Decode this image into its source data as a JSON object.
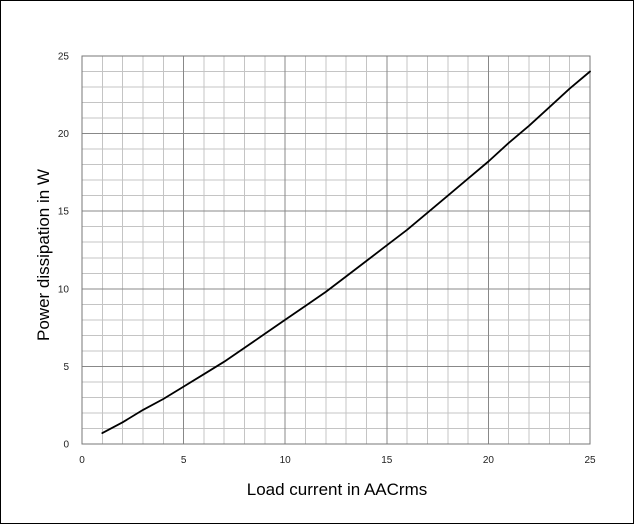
{
  "chart_data": {
    "type": "line",
    "title": "",
    "xlabel": "Load current in AACrms",
    "ylabel": "Power dissipation in W",
    "xlim": [
      0,
      25
    ],
    "ylim": [
      0,
      25
    ],
    "x_ticks": [
      0,
      5,
      10,
      15,
      20,
      25
    ],
    "y_ticks": [
      0,
      5,
      10,
      15,
      20,
      25
    ],
    "x_tick_labels": [
      "0",
      "5",
      "10",
      "15",
      "20",
      "25"
    ],
    "y_tick_labels": [
      "0",
      "5",
      "10",
      "15",
      "20",
      "25"
    ],
    "grid": true,
    "grid_minor_step": 1,
    "legend": "none",
    "colors": {
      "line": "#000000",
      "grid_major": "#888888",
      "grid_minor": "#c4c4c4",
      "frame": "#000000"
    },
    "series": [
      {
        "x": [
          1,
          2,
          3,
          4,
          5,
          6,
          7,
          8,
          9,
          10,
          11,
          12,
          13,
          14,
          15,
          16,
          17,
          18,
          19,
          20,
          21,
          22,
          23,
          24,
          25
        ],
        "y": [
          0.7,
          1.4,
          2.2,
          2.9,
          3.7,
          4.5,
          5.3,
          6.2,
          7.1,
          8.0,
          8.9,
          9.8,
          10.8,
          11.8,
          12.8,
          13.8,
          14.9,
          16.0,
          17.1,
          18.2,
          19.4,
          20.5,
          21.7,
          22.9,
          24.0
        ]
      }
    ]
  }
}
